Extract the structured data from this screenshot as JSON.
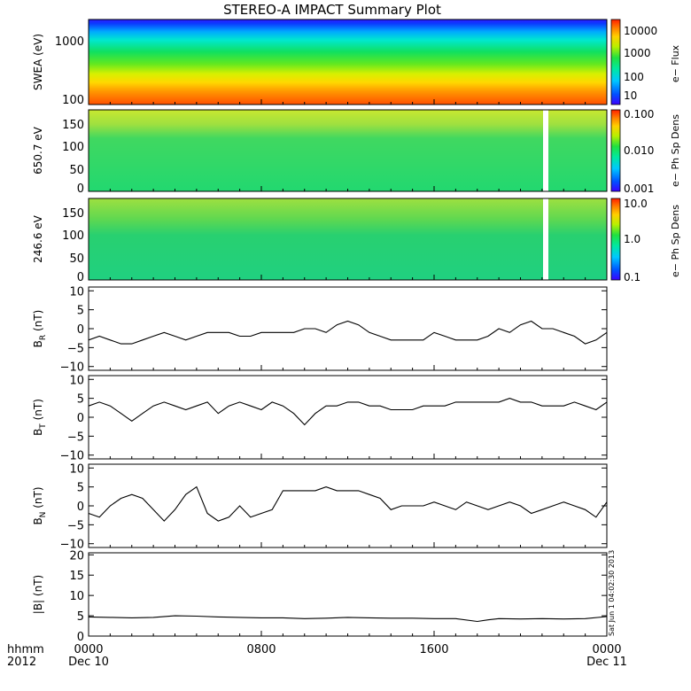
{
  "title": "STEREO-A IMPACT Summary Plot",
  "side_stamp": "Sat Jun  1 04:02:30 2013",
  "footer": {
    "row1_left": "hhmm",
    "row2_left": "2012",
    "x_ticks": [
      "0000",
      "0800",
      "1600",
      "0000"
    ],
    "date_start": "Dec 10",
    "date_end": "Dec 11"
  },
  "chart_data": [
    {
      "type": "heatmap",
      "name": "swea",
      "ylabel": "SWEA (eV)",
      "y_scale": "log",
      "ylim": [
        90,
        2000
      ],
      "y_ticks": [
        "100",
        "1000"
      ],
      "colorbar": {
        "label": "e− Flux",
        "scale": "log",
        "ticks": [
          "10",
          "100",
          "1000",
          "10000"
        ]
      }
    },
    {
      "type": "heatmap",
      "name": "pad650",
      "ylabel": "650.7 eV",
      "ylim": [
        0,
        180
      ],
      "y_ticks": [
        "0",
        "50",
        "100",
        "150"
      ],
      "data_gap_hours": [
        21.25,
        21.45
      ],
      "colorbar": {
        "label": "e− Ph Sp Dens",
        "scale": "log",
        "ticks": [
          "0.001",
          "0.010",
          "0.100"
        ]
      }
    },
    {
      "type": "heatmap",
      "name": "pad246",
      "ylabel": "246.6 eV",
      "ylim": [
        0,
        180
      ],
      "y_ticks": [
        "0",
        "50",
        "100",
        "150"
      ],
      "data_gap_hours": [
        21.25,
        21.45
      ],
      "colorbar": {
        "label": "e− Ph Sp Dens",
        "scale": "log",
        "ticks": [
          "0.1",
          "1.0",
          "10.0"
        ]
      }
    },
    {
      "type": "line",
      "name": "br",
      "ylabel": "B",
      "ysub": "R",
      "yunit": " (nT)",
      "ylim": [
        -11,
        11
      ],
      "y_ticks": [
        "10",
        "5",
        "0",
        "−5",
        "−10"
      ],
      "x": [
        0,
        0.5,
        1,
        1.5,
        2,
        2.5,
        3,
        3.5,
        4,
        4.5,
        5,
        5.5,
        6,
        6.5,
        7,
        7.5,
        8,
        8.5,
        9,
        9.5,
        10,
        10.5,
        11,
        11.5,
        12,
        12.5,
        13,
        13.5,
        14,
        14.5,
        15,
        15.5,
        16,
        16.5,
        17,
        17.5,
        18,
        18.5,
        19,
        19.5,
        20,
        20.5,
        21,
        21.5,
        22,
        22.5,
        23,
        23.5,
        24
      ],
      "y": [
        -3,
        -2,
        -3,
        -4,
        -4,
        -3,
        -2,
        -1,
        -2,
        -3,
        -2,
        -1,
        -1,
        -1,
        -2,
        -2,
        -1,
        -1,
        -1,
        -1,
        0,
        0,
        -1,
        1,
        2,
        1,
        -1,
        -2,
        -3,
        -3,
        -3,
        -3,
        -1,
        -2,
        -3,
        -3,
        -3,
        -2,
        0,
        -1,
        1,
        2,
        0,
        0,
        -1,
        -2,
        -4,
        -3,
        -1
      ]
    },
    {
      "type": "line",
      "name": "bt",
      "ylabel": "B",
      "ysub": "T",
      "yunit": " (nT)",
      "ylim": [
        -11,
        11
      ],
      "y_ticks": [
        "10",
        "5",
        "0",
        "−5",
        "−10"
      ],
      "x": [
        0,
        0.5,
        1,
        1.5,
        2,
        2.5,
        3,
        3.5,
        4,
        4.5,
        5,
        5.5,
        6,
        6.5,
        7,
        7.5,
        8,
        8.5,
        9,
        9.5,
        10,
        10.5,
        11,
        11.5,
        12,
        12.5,
        13,
        13.5,
        14,
        14.5,
        15,
        15.5,
        16,
        16.5,
        17,
        17.5,
        18,
        18.5,
        19,
        19.5,
        20,
        20.5,
        21,
        21.5,
        22,
        22.5,
        23,
        23.5,
        24
      ],
      "y": [
        3,
        4,
        3,
        1,
        -1,
        1,
        3,
        4,
        3,
        2,
        3,
        4,
        1,
        3,
        4,
        3,
        2,
        4,
        3,
        1,
        -2,
        1,
        3,
        3,
        4,
        4,
        3,
        3,
        2,
        2,
        2,
        3,
        3,
        3,
        4,
        4,
        4,
        4,
        4,
        5,
        4,
        4,
        3,
        3,
        3,
        4,
        3,
        2,
        4
      ]
    },
    {
      "type": "line",
      "name": "bn",
      "ylabel": "B",
      "ysub": "N",
      "yunit": " (nT)",
      "ylim": [
        -11,
        11
      ],
      "y_ticks": [
        "10",
        "5",
        "0",
        "−5",
        "−10"
      ],
      "x": [
        0,
        0.5,
        1,
        1.5,
        2,
        2.5,
        3,
        3.5,
        4,
        4.5,
        5,
        5.5,
        6,
        6.5,
        7,
        7.5,
        8,
        8.5,
        9,
        9.5,
        10,
        10.5,
        11,
        11.5,
        12,
        12.5,
        13,
        13.5,
        14,
        14.5,
        15,
        15.5,
        16,
        16.5,
        17,
        17.5,
        18,
        18.5,
        19,
        19.5,
        20,
        20.5,
        21,
        21.5,
        22,
        22.5,
        23,
        23.5,
        24
      ],
      "y": [
        -2,
        -3,
        0,
        2,
        3,
        2,
        -1,
        -4,
        -1,
        3,
        5,
        -2,
        -4,
        -3,
        0,
        -3,
        -2,
        -1,
        4,
        4,
        4,
        4,
        5,
        4,
        4,
        4,
        3,
        2,
        -1,
        0,
        0,
        0,
        1,
        0,
        -1,
        1,
        0,
        -1,
        0,
        1,
        0,
        -2,
        -1,
        0,
        1,
        0,
        -1,
        -3,
        1
      ]
    },
    {
      "type": "line",
      "name": "bmag",
      "ylabel": "|B| (nT)",
      "ylim": [
        0,
        20.5
      ],
      "y_ticks": [
        "20",
        "15",
        "10",
        "5",
        "0"
      ],
      "x": [
        0,
        1,
        2,
        3,
        4,
        5,
        6,
        7,
        8,
        9,
        10,
        11,
        12,
        13,
        14,
        15,
        16,
        17,
        18,
        18.5,
        19,
        20,
        21,
        22,
        23,
        24
      ],
      "y": [
        4.7,
        4.6,
        4.5,
        4.6,
        5.0,
        4.9,
        4.7,
        4.6,
        4.5,
        4.5,
        4.3,
        4.4,
        4.6,
        4.5,
        4.4,
        4.4,
        4.3,
        4.3,
        3.6,
        4.0,
        4.3,
        4.2,
        4.3,
        4.2,
        4.3,
        4.8
      ]
    }
  ]
}
